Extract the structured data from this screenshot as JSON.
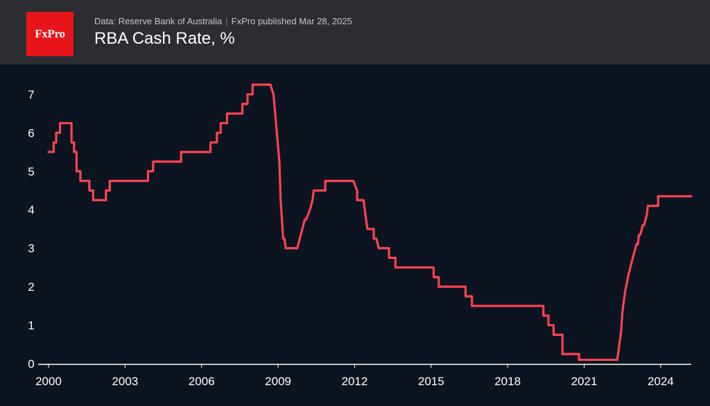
{
  "header": {
    "logo_text": "FxPro",
    "source": "Data: Reserve Bank of Australia",
    "separator": "|",
    "publisher": "FxPro published Mar 28, 2025",
    "title": "RBA Cash Rate, %"
  },
  "colors": {
    "header_bg": "#2b2d33",
    "plot_bg": "#0d1421",
    "line": "#ff4450",
    "logo_bg": "#e8141b",
    "text": "#ffffff"
  },
  "chart_data": {
    "type": "line",
    "title": "RBA Cash Rate, %",
    "xlabel": "",
    "ylabel": "%",
    "xlim": [
      2000,
      2025.2
    ],
    "ylim": [
      0,
      7.25
    ],
    "xticks": [
      2000,
      2003,
      2006,
      2009,
      2012,
      2015,
      2018,
      2021,
      2024
    ],
    "yticks": [
      0,
      1,
      2,
      3,
      4,
      5,
      6,
      7
    ],
    "grid": false,
    "series": [
      {
        "name": "RBA Cash Rate",
        "x": [
          2000.0,
          2000.2,
          2000.2,
          2000.3,
          2000.3,
          2000.45,
          2000.45,
          2000.6,
          2000.6,
          2000.9,
          2000.9,
          2001.0,
          2001.0,
          2001.1,
          2001.1,
          2001.25,
          2001.25,
          2001.6,
          2001.6,
          2001.75,
          2001.75,
          2001.85,
          2001.85,
          2002.25,
          2002.25,
          2002.4,
          2002.4,
          2003.9,
          2003.9,
          2004.1,
          2004.1,
          2005.2,
          2005.2,
          2006.35,
          2006.35,
          2006.6,
          2006.6,
          2006.75,
          2006.75,
          2006.85,
          2006.85,
          2007.0,
          2007.0,
          2007.6,
          2007.6,
          2007.8,
          2007.8,
          2008.0,
          2008.0,
          2008.25,
          2008.25,
          2008.7,
          2008.82,
          2008.95,
          2009.05,
          2009.1,
          2009.2,
          2009.25,
          2009.3,
          2009.35,
          2009.75,
          2009.85,
          2009.95,
          2010.05,
          2010.1,
          2010.25,
          2010.35,
          2010.4,
          2010.85,
          2010.85,
          2011.95,
          2011.95,
          2012.1,
          2012.1,
          2012.35,
          2012.4,
          2012.45,
          2012.5,
          2012.75,
          2012.75,
          2012.85,
          2012.85,
          2012.95,
          2012.95,
          2013.35,
          2013.35,
          2013.6,
          2013.6,
          2015.1,
          2015.1,
          2015.3,
          2015.3,
          2016.35,
          2016.35,
          2016.6,
          2016.6,
          2019.4,
          2019.4,
          2019.6,
          2019.6,
          2019.8,
          2019.8,
          2020.15,
          2020.15,
          2020.8,
          2020.8,
          2022.3,
          2022.35,
          2022.45,
          2022.5,
          2022.6,
          2022.75,
          2022.85,
          2022.95,
          2023.05,
          2023.1,
          2023.15,
          2023.2,
          2023.3,
          2023.35,
          2023.45,
          2023.5,
          2023.9,
          2023.9,
          2025.2
        ],
        "values": [
          5.5,
          5.5,
          5.75,
          5.75,
          6.0,
          6.0,
          6.25,
          6.25,
          6.25,
          6.25,
          5.75,
          5.75,
          5.5,
          5.5,
          5.0,
          5.0,
          4.75,
          4.75,
          4.5,
          4.5,
          4.25,
          4.25,
          4.25,
          4.25,
          4.5,
          4.5,
          4.75,
          4.75,
          5.0,
          5.0,
          5.25,
          5.25,
          5.5,
          5.5,
          5.75,
          5.75,
          6.0,
          6.0,
          6.25,
          6.25,
          6.25,
          6.25,
          6.5,
          6.5,
          6.75,
          6.75,
          7.0,
          7.0,
          7.25,
          7.25,
          7.25,
          7.25,
          7.0,
          6.0,
          5.25,
          4.25,
          3.25,
          3.25,
          3.0,
          3.0,
          3.0,
          3.25,
          3.5,
          3.75,
          3.75,
          4.0,
          4.25,
          4.5,
          4.5,
          4.75,
          4.75,
          4.75,
          4.5,
          4.25,
          4.25,
          4.0,
          3.75,
          3.5,
          3.5,
          3.25,
          3.25,
          3.25,
          3.0,
          3.0,
          3.0,
          2.75,
          2.75,
          2.5,
          2.5,
          2.25,
          2.25,
          2.0,
          2.0,
          1.75,
          1.75,
          1.5,
          1.5,
          1.25,
          1.25,
          1.0,
          1.0,
          0.75,
          0.75,
          0.25,
          0.25,
          0.1,
          0.1,
          0.35,
          0.85,
          1.35,
          1.85,
          2.35,
          2.6,
          2.85,
          3.1,
          3.1,
          3.35,
          3.35,
          3.6,
          3.6,
          3.85,
          4.1,
          4.1,
          4.35,
          4.35
        ]
      }
    ]
  }
}
